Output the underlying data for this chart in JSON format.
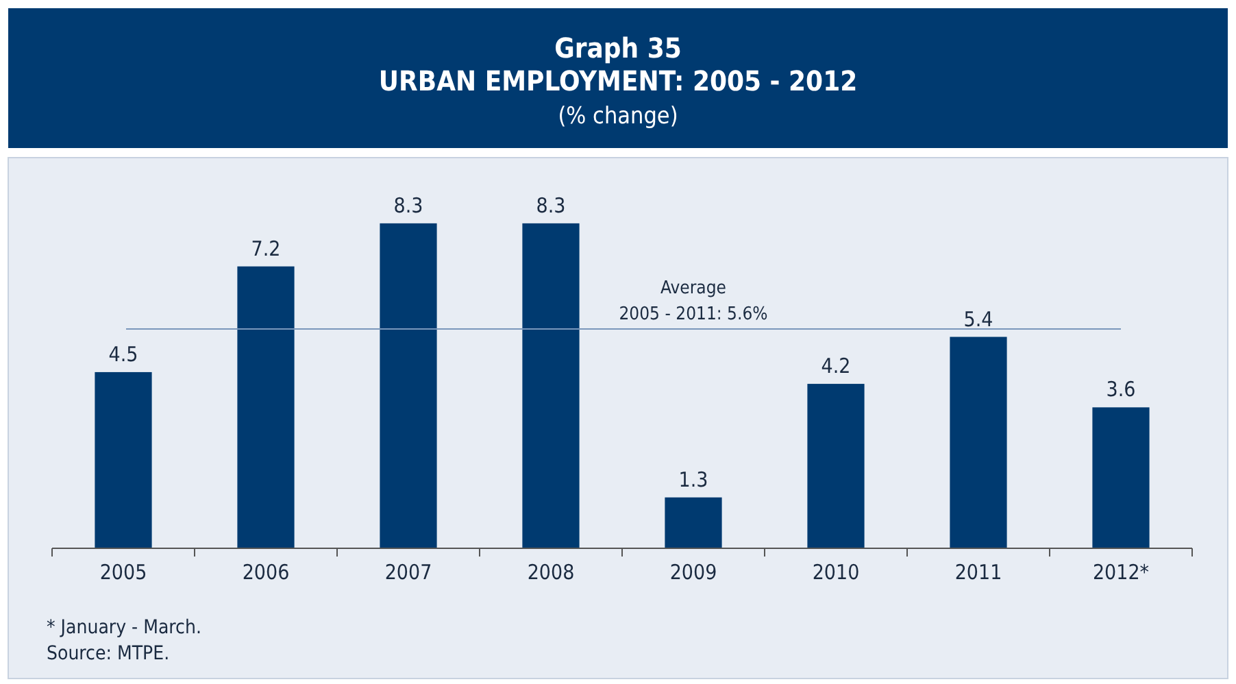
{
  "chart_data": {
    "type": "bar",
    "title": "Graph 35\nURBAN EMPLOYMENT: 2005 - 2012",
    "subtitle": "(% change)",
    "categories": [
      "2005",
      "2006",
      "2007",
      "2008",
      "2009",
      "2010",
      "2011",
      "2012*"
    ],
    "values": [
      4.5,
      7.2,
      8.3,
      8.3,
      1.3,
      4.2,
      5.4,
      3.6
    ],
    "color": "#003a70",
    "data_labels": true,
    "ref_lines": [
      {
        "axis": "y",
        "value": 5.6,
        "label": "Average\n2005 - 2011: 5.6%",
        "color": "#7a97bb"
      }
    ],
    "annotations": [
      "* January - March.",
      "Source: MTPE."
    ]
  }
}
